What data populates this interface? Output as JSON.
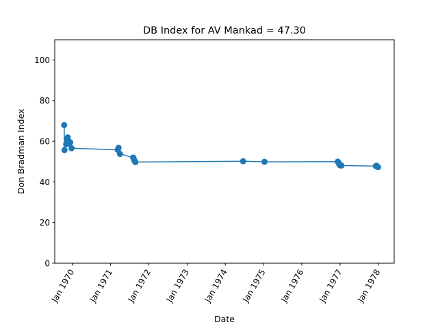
{
  "chart_data": {
    "type": "line",
    "title": "DB Index for AV Mankad = 47.30",
    "xlabel": "Date",
    "ylabel": "Don Bradman Index",
    "ylim": [
      0,
      110
    ],
    "y_ticks": [
      0,
      20,
      40,
      60,
      80,
      100
    ],
    "xlim": [
      "1969-07-17",
      "1978-06-02"
    ],
    "x_ticks": [
      {
        "date": "1970-01-01",
        "label": "Jan 1970"
      },
      {
        "date": "1971-01-01",
        "label": "Jan 1971"
      },
      {
        "date": "1972-01-01",
        "label": "Jan 1972"
      },
      {
        "date": "1973-01-01",
        "label": "Jan 1973"
      },
      {
        "date": "1974-01-01",
        "label": "Jan 1974"
      },
      {
        "date": "1975-01-01",
        "label": "Jan 1975"
      },
      {
        "date": "1976-01-01",
        "label": "Jan 1976"
      },
      {
        "date": "1977-01-01",
        "label": "Jan 1977"
      },
      {
        "date": "1978-01-01",
        "label": "Jan 1978"
      }
    ],
    "grid": false,
    "color": "#1f77b4",
    "series": [
      {
        "points": [
          {
            "x": "1969-10-15",
            "y": 68.0
          },
          {
            "x": "1969-10-18",
            "y": 55.7
          },
          {
            "x": "1969-11-03",
            "y": 58.6
          },
          {
            "x": "1969-11-10",
            "y": 61.2
          },
          {
            "x": "1969-11-18",
            "y": 61.9
          },
          {
            "x": "1969-11-25",
            "y": 59.0
          },
          {
            "x": "1969-12-12",
            "y": 59.5
          },
          {
            "x": "1969-12-24",
            "y": 56.6
          },
          {
            "x": "1971-03-11",
            "y": 55.8
          },
          {
            "x": "1971-03-18",
            "y": 56.8
          },
          {
            "x": "1971-04-01",
            "y": 53.8
          },
          {
            "x": "1971-08-05",
            "y": 52.0
          },
          {
            "x": "1971-08-12",
            "y": 51.2
          },
          {
            "x": "1971-08-19",
            "y": 50.3
          },
          {
            "x": "1971-08-26",
            "y": 49.8
          },
          {
            "x": "1974-06-20",
            "y": 50.2
          },
          {
            "x": "1975-01-10",
            "y": 49.9
          },
          {
            "x": "1976-12-10",
            "y": 50.0
          },
          {
            "x": "1976-12-17",
            "y": 49.5
          },
          {
            "x": "1976-12-24",
            "y": 48.7
          },
          {
            "x": "1977-01-01",
            "y": 48.2
          },
          {
            "x": "1977-01-14",
            "y": 48.1
          },
          {
            "x": "1977-12-09",
            "y": 47.8
          },
          {
            "x": "1977-12-16",
            "y": 48.0
          },
          {
            "x": "1977-12-30",
            "y": 47.3
          }
        ]
      }
    ]
  }
}
